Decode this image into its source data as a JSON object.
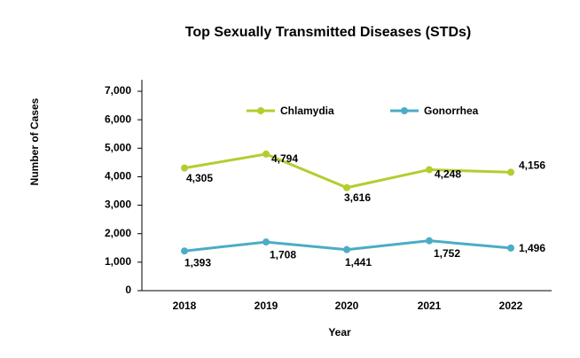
{
  "chart_data": {
    "type": "line",
    "title": "Top Sexually Transmitted Diseases (STDs)",
    "x_label": "Year",
    "y_label": "Number of Cases",
    "categories": [
      "2018",
      "2019",
      "2020",
      "2021",
      "2022"
    ],
    "series": [
      {
        "name": "Chlamydia",
        "color": "#b5cc2e",
        "values": [
          4305,
          4794,
          3616,
          4248,
          4156
        ],
        "value_labels": [
          "4,305",
          "4,794",
          "3,616",
          "4,248",
          "4,156"
        ]
      },
      {
        "name": "Gonorrhea",
        "color": "#4bacc6",
        "values": [
          1393,
          1708,
          1441,
          1752,
          1496
        ],
        "value_labels": [
          "1,393",
          "1,708",
          "1,441",
          "1,752",
          "1,496"
        ]
      }
    ],
    "ylim": [
      0,
      7000
    ],
    "yticks": [
      0,
      {
        "value": 1000,
        "label": "1,000"
      },
      {
        "value": 2000,
        "label": "2,000"
      },
      {
        "value": 3000,
        "label": "3,000"
      },
      {
        "value": 4000,
        "label": "4,000"
      },
      {
        "value": 5000,
        "label": "5,000"
      },
      {
        "value": 6000,
        "label": "6,000"
      },
      {
        "value": 7000,
        "label": "7,000"
      }
    ],
    "grid": false,
    "legend": "top"
  }
}
